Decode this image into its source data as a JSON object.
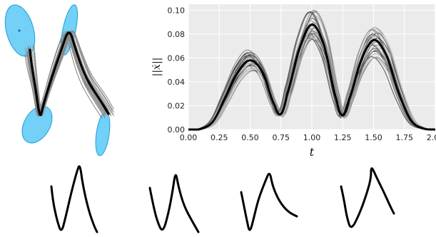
{
  "chart_data": [
    {
      "type": "line",
      "panel": "letter-trajectories-2d",
      "description_visible": "many gray demonstration trajectories of the letter N with mean trajectory in black and blue covariance ellipses",
      "colors": {
        "demos": "#9a9a9a",
        "mean": "#000000",
        "ellipse_fill": "#5bc8f5",
        "ellipse_edge": "#1a9fd9"
      }
    },
    {
      "type": "line",
      "panel": "speed-profile",
      "xlabel": "t",
      "ylabel": "||ẋ||",
      "xlim": [
        0.0,
        2.0
      ],
      "ylim": [
        0.0,
        0.105
      ],
      "grid": true,
      "xticks": [
        "0.00",
        "0.25",
        "0.50",
        "0.75",
        "1.00",
        "1.25",
        "1.50",
        "1.75",
        "2.00"
      ],
      "yticks": [
        "0.00",
        "0.02",
        "0.04",
        "0.06",
        "0.08",
        "0.10"
      ],
      "mean_series": {
        "x": [
          0.0,
          0.1,
          0.2,
          0.3,
          0.4,
          0.5,
          0.6,
          0.7,
          0.75,
          0.8,
          0.9,
          1.0,
          1.1,
          1.2,
          1.25,
          1.3,
          1.4,
          1.5,
          1.6,
          1.7,
          1.8,
          1.9,
          2.0
        ],
        "y": [
          0.0,
          0.0005,
          0.007,
          0.027,
          0.048,
          0.058,
          0.048,
          0.02,
          0.013,
          0.03,
          0.068,
          0.088,
          0.07,
          0.025,
          0.012,
          0.025,
          0.058,
          0.075,
          0.063,
          0.032,
          0.008,
          0.001,
          0.0
        ]
      },
      "colors": {
        "demos": "#7a7a7a",
        "mean": "#000000",
        "background": "#ebebeb",
        "grid": "#ffffff"
      }
    },
    {
      "type": "line",
      "panel": "generated-letters",
      "count": 4,
      "colors": {
        "stroke": "#000000"
      }
    }
  ],
  "axis_text": {
    "xlabel": "t",
    "ylabel": "||ẋ||",
    "xticks": [
      "0.00",
      "0.25",
      "0.50",
      "0.75",
      "1.00",
      "1.25",
      "1.50",
      "1.75",
      "2.00"
    ],
    "yticks": [
      "0.00",
      "0.02",
      "0.04",
      "0.06",
      "0.08",
      "0.10"
    ]
  }
}
